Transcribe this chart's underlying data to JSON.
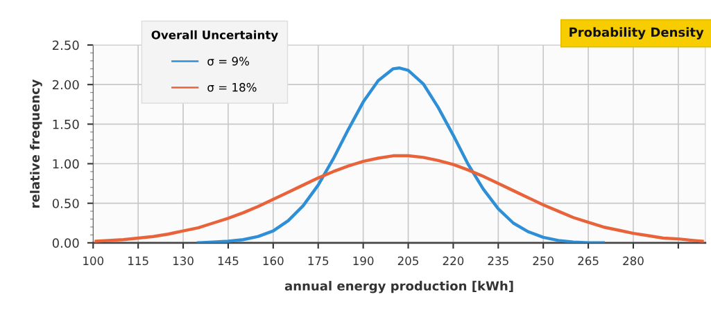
{
  "chart_data": {
    "type": "line",
    "xlabel": "annual energy production [kWh]",
    "ylabel": "relative frequency",
    "legend_title": "Overall Uncertainty",
    "annotations": [
      "Probability Density"
    ],
    "series": [
      {
        "name": "σ = 9%",
        "color": "#2e8fd6",
        "x": [
          135,
          140,
          145,
          150,
          155,
          160,
          165,
          170,
          175,
          180,
          185,
          190,
          195,
          200,
          202,
          205,
          210,
          215,
          220,
          225,
          230,
          235,
          240,
          245,
          250,
          255,
          260,
          265,
          270
        ],
        "values": [
          0.0,
          0.01,
          0.02,
          0.04,
          0.08,
          0.15,
          0.28,
          0.47,
          0.73,
          1.06,
          1.43,
          1.78,
          2.05,
          2.2,
          2.21,
          2.18,
          2.01,
          1.71,
          1.36,
          0.99,
          0.68,
          0.43,
          0.25,
          0.14,
          0.07,
          0.03,
          0.01,
          0.0,
          0.0
        ]
      },
      {
        "name": "σ = 18%",
        "color": "#e8623a",
        "x": [
          101,
          105,
          110,
          115,
          120,
          125,
          130,
          135,
          140,
          145,
          150,
          155,
          160,
          165,
          170,
          175,
          180,
          185,
          190,
          195,
          200,
          205,
          210,
          215,
          220,
          225,
          230,
          235,
          240,
          245,
          250,
          255,
          260,
          265,
          270,
          275,
          280,
          285,
          290,
          295,
          300,
          303
        ],
        "values": [
          0.02,
          0.03,
          0.04,
          0.06,
          0.08,
          0.11,
          0.15,
          0.19,
          0.25,
          0.31,
          0.38,
          0.46,
          0.55,
          0.64,
          0.73,
          0.82,
          0.9,
          0.97,
          1.03,
          1.07,
          1.1,
          1.1,
          1.08,
          1.04,
          0.99,
          0.92,
          0.84,
          0.75,
          0.66,
          0.57,
          0.48,
          0.4,
          0.32,
          0.26,
          0.2,
          0.16,
          0.12,
          0.09,
          0.06,
          0.05,
          0.03,
          0.02
        ]
      }
    ],
    "xlim": [
      100,
      304
    ],
    "xticks": [
      100,
      115,
      130,
      145,
      160,
      175,
      190,
      205,
      220,
      235,
      250,
      265,
      280,
      {
        "value": 295,
        "label": null
      }
    ],
    "ylim": [
      0,
      2.5
    ],
    "yticks": [
      {
        "value": 0,
        "label": "0.00"
      },
      {
        "value": 0.5,
        "label": "0.50"
      },
      {
        "value": 1,
        "label": "1.00"
      },
      {
        "value": 1.5,
        "label": "1.50"
      },
      {
        "value": 2,
        "label": "2.00"
      },
      {
        "value": 2.5,
        "label": "2.50"
      }
    ],
    "grid": true,
    "legend": "top left",
    "marker": "none",
    "line_style": "solid"
  }
}
